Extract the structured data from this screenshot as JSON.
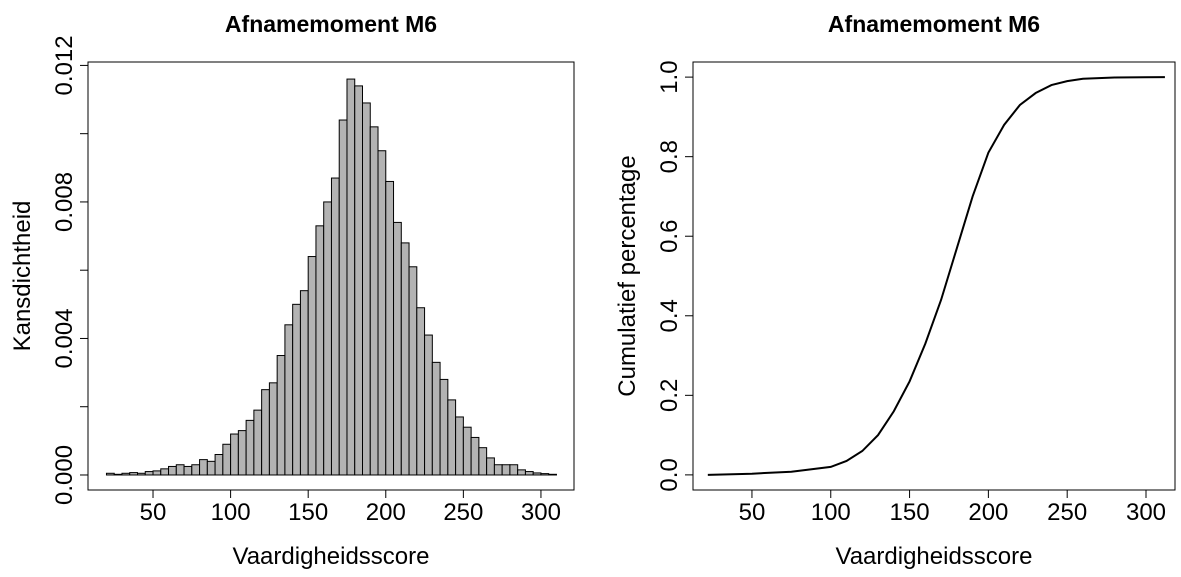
{
  "chart_data": [
    {
      "type": "histogram",
      "title": "Afnamemoment M6",
      "xlabel": "Vaardigheidsscore",
      "ylabel": "Kansdichtheid",
      "color": "#b3b3b3",
      "bins": [
        20,
        25,
        30,
        35,
        40,
        45,
        50,
        55,
        60,
        65,
        70,
        75,
        80,
        85,
        90,
        95,
        100,
        105,
        110,
        115,
        120,
        125,
        130,
        135,
        140,
        145,
        150,
        155,
        160,
        165,
        170,
        175,
        180,
        185,
        190,
        195,
        200,
        205,
        210,
        215,
        220,
        225,
        230,
        235,
        240,
        245,
        250,
        255,
        260,
        265,
        270,
        275,
        280,
        285,
        290,
        295,
        300,
        305,
        310
      ],
      "values": [
        5e-05,
        2e-05,
        5e-05,
        7e-05,
        5e-05,
        0.0001,
        0.00012,
        0.00018,
        0.00025,
        0.0003,
        0.00025,
        0.0003,
        0.00045,
        0.0004,
        0.0006,
        0.0009,
        0.0012,
        0.0013,
        0.0016,
        0.0019,
        0.0025,
        0.0027,
        0.0035,
        0.0044,
        0.005,
        0.0054,
        0.0064,
        0.0073,
        0.008,
        0.0087,
        0.0104,
        0.0116,
        0.0114,
        0.0109,
        0.0102,
        0.0095,
        0.0086,
        0.0074,
        0.0068,
        0.0061,
        0.0049,
        0.0041,
        0.0033,
        0.0028,
        0.0022,
        0.0017,
        0.0014,
        0.0011,
        0.0008,
        0.0005,
        0.0003,
        0.0003,
        0.0003,
        0.00015,
        0.0001,
        6e-05,
        4e-05,
        2e-05
      ],
      "xlim": [
        8.1,
        321.3
      ],
      "xticks": [
        50,
        100,
        150,
        200,
        250,
        300
      ],
      "ylim": [
        -0.00044,
        0.0121
      ],
      "yticks": [
        {
          "value": 0,
          "label": "0.000"
        },
        {
          "value": 0.004,
          "label": "0.004"
        },
        {
          "value": 0.008,
          "label": "0.008"
        },
        {
          "value": 0.012,
          "label": "0.012"
        }
      ],
      "yminorticks": [
        0.002,
        0.006,
        0.01
      ]
    },
    {
      "type": "line",
      "title": "Afnamemoment M6",
      "xlabel": "Vaardigheidsscore",
      "ylabel": "Cumulatief percentage",
      "x": [
        22,
        50,
        75,
        100,
        110,
        120,
        130,
        140,
        150,
        160,
        170,
        180,
        190,
        200,
        210,
        220,
        230,
        240,
        250,
        260,
        280,
        312
      ],
      "series": [
        {
          "color": "#000000",
          "values": [
            0,
            0.003,
            0.008,
            0.02,
            0.035,
            0.06,
            0.1,
            0.16,
            0.235,
            0.33,
            0.44,
            0.57,
            0.7,
            0.81,
            0.88,
            0.93,
            0.96,
            0.98,
            0.99,
            0.996,
            0.999,
            1.0
          ]
        }
      ],
      "xlim": [
        12.6,
        318.4
      ],
      "xticks": [
        50,
        100,
        150,
        200,
        250,
        300
      ],
      "ylim": [
        -0.038,
        1.038
      ],
      "yticks": [
        {
          "value": 0,
          "label": "0.0"
        },
        {
          "value": 0.2,
          "label": "0.2"
        },
        {
          "value": 0.4,
          "label": "0.4"
        },
        {
          "value": 0.6,
          "label": "0.6"
        },
        {
          "value": 0.8,
          "label": "0.8"
        },
        {
          "value": 1,
          "label": "1.0"
        }
      ]
    }
  ]
}
